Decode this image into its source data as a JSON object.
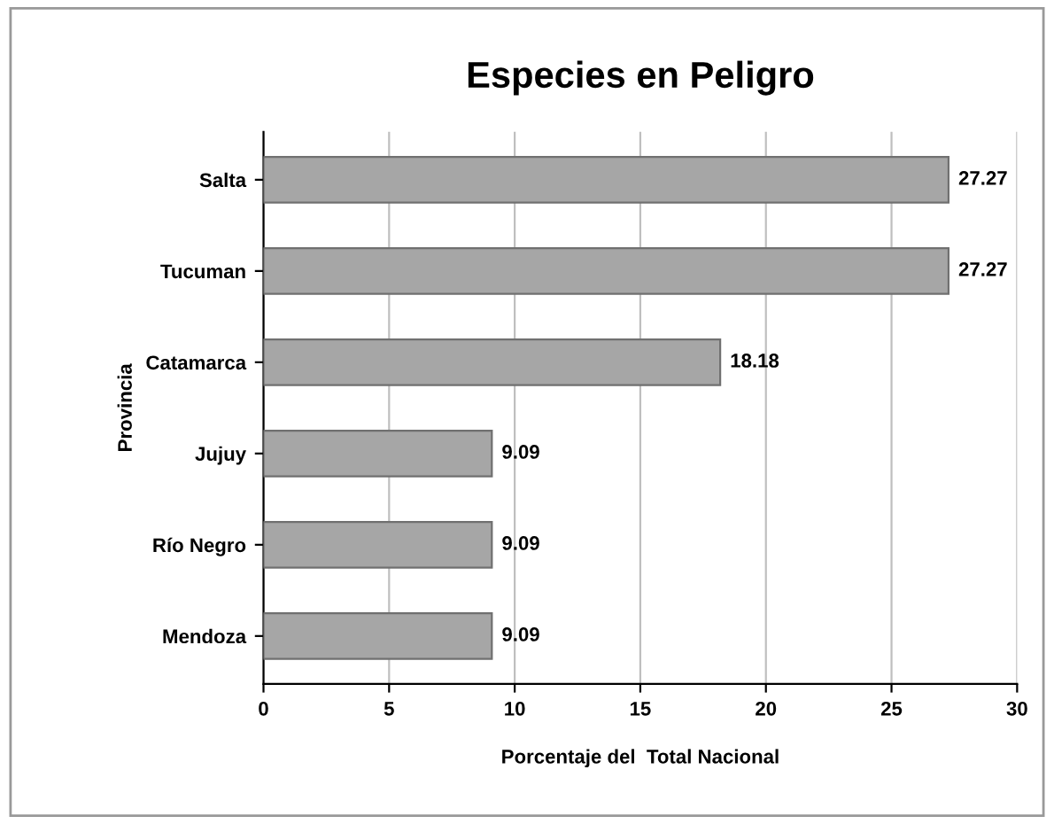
{
  "chart_data": {
    "type": "bar",
    "orientation": "horizontal",
    "title": "Especies en Peligro",
    "xlabel": "Porcentaje del  Total Nacional",
    "ylabel": "Provincia",
    "categories": [
      "Salta",
      "Tucuman",
      "Catamarca",
      "Jujuy",
      "Río Negro",
      "Mendoza"
    ],
    "values": [
      27.27,
      27.27,
      18.18,
      9.09,
      9.09,
      9.09
    ],
    "color": "#a6a6a6",
    "xlim": [
      0,
      30
    ],
    "xticks": [
      0,
      5,
      10,
      15,
      20,
      25,
      30
    ],
    "grid": "x",
    "data_labels": true
  }
}
